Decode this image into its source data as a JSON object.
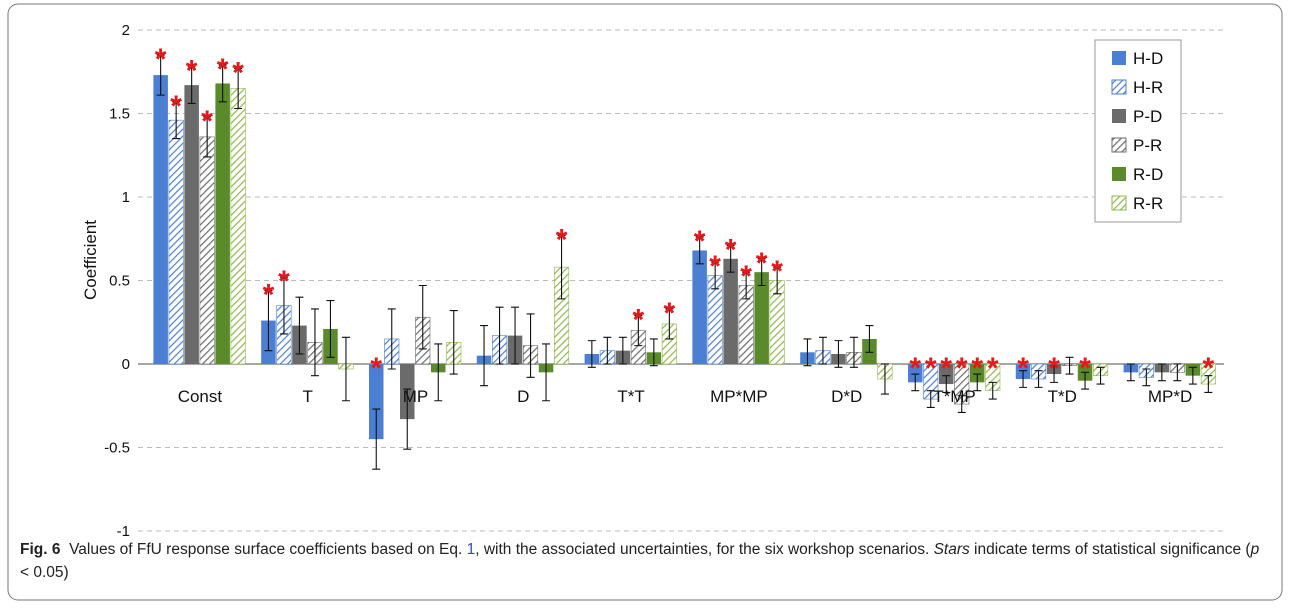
{
  "chart_data": {
    "type": "bar",
    "y_label": "Coefficient",
    "categories": [
      "Const",
      "T",
      "MP",
      "D",
      "T*T",
      "MP*MP",
      "D*D",
      "T*MP",
      "T*D",
      "MP*D"
    ],
    "ylim": [
      -1,
      2
    ],
    "yticks": [
      2,
      1.5,
      1,
      0.5,
      0,
      -0.5,
      -1
    ],
    "grid": true,
    "legend": "upper right",
    "star_label": "*",
    "star_color": "#e81818",
    "series": [
      {
        "name": "H-D",
        "color": "#4a7fd4",
        "hatch": false,
        "values": [
          1.73,
          0.26,
          -0.45,
          0.05,
          0.06,
          0.68,
          0.07,
          -0.11,
          -0.09,
          -0.05
        ],
        "errors": [
          0.12,
          0.18,
          0.18,
          0.18,
          0.08,
          0.08,
          0.08,
          0.05,
          0.05,
          0.05
        ],
        "significant": [
          true,
          true,
          true,
          false,
          false,
          true,
          false,
          true,
          true,
          false
        ]
      },
      {
        "name": "H-R",
        "color": "#4a7fd4",
        "hatch": true,
        "values": [
          1.46,
          0.35,
          0.15,
          0.17,
          0.08,
          0.53,
          0.08,
          -0.21,
          -0.09,
          -0.08
        ],
        "errors": [
          0.11,
          0.17,
          0.18,
          0.17,
          0.08,
          0.08,
          0.08,
          0.05,
          0.05,
          0.05
        ],
        "significant": [
          true,
          true,
          false,
          false,
          false,
          true,
          false,
          true,
          false,
          false
        ]
      },
      {
        "name": "P-D",
        "color": "#6b6b6b",
        "hatch": false,
        "values": [
          1.67,
          0.23,
          -0.33,
          0.17,
          0.08,
          0.63,
          0.06,
          -0.12,
          -0.06,
          -0.05
        ],
        "errors": [
          0.11,
          0.17,
          0.18,
          0.17,
          0.08,
          0.08,
          0.08,
          0.05,
          0.05,
          0.05
        ],
        "significant": [
          true,
          false,
          false,
          false,
          false,
          true,
          false,
          true,
          true,
          false
        ]
      },
      {
        "name": "P-R",
        "color": "#6b6b6b",
        "hatch": true,
        "values": [
          1.36,
          0.13,
          0.28,
          0.11,
          0.2,
          0.47,
          0.07,
          -0.24,
          -0.01,
          -0.05
        ],
        "errors": [
          0.12,
          0.2,
          0.19,
          0.19,
          0.09,
          0.08,
          0.09,
          0.05,
          0.05,
          0.05
        ],
        "significant": [
          true,
          false,
          false,
          false,
          true,
          true,
          false,
          true,
          false,
          false
        ]
      },
      {
        "name": "R-D",
        "color": "#5a8a2a",
        "hatch": false,
        "values": [
          1.68,
          0.21,
          -0.05,
          -0.05,
          0.07,
          0.55,
          0.15,
          -0.11,
          -0.1,
          -0.07
        ],
        "errors": [
          0.11,
          0.17,
          0.17,
          0.17,
          0.08,
          0.08,
          0.08,
          0.05,
          0.05,
          0.05
        ],
        "significant": [
          true,
          false,
          false,
          false,
          false,
          true,
          false,
          true,
          true,
          false
        ]
      },
      {
        "name": "R-R",
        "color": "#8fb84a",
        "hatch": true,
        "values": [
          1.65,
          -0.03,
          0.13,
          0.58,
          0.24,
          0.5,
          -0.09,
          -0.16,
          -0.07,
          -0.12
        ],
        "errors": [
          0.12,
          0.19,
          0.19,
          0.19,
          0.09,
          0.08,
          0.09,
          0.05,
          0.05,
          0.05
        ],
        "significant": [
          true,
          false,
          false,
          true,
          true,
          true,
          false,
          true,
          false,
          true
        ]
      }
    ]
  },
  "caption": {
    "label": "Fig. 6",
    "parts": [
      "Values of FfU response surface coefficients based on Eq. ",
      "1",
      ", with the associated uncertainties, for the six workshop scenarios. ",
      "Stars",
      " indicate terms of statistical significance (",
      "p",
      " < 0.05)"
    ]
  }
}
